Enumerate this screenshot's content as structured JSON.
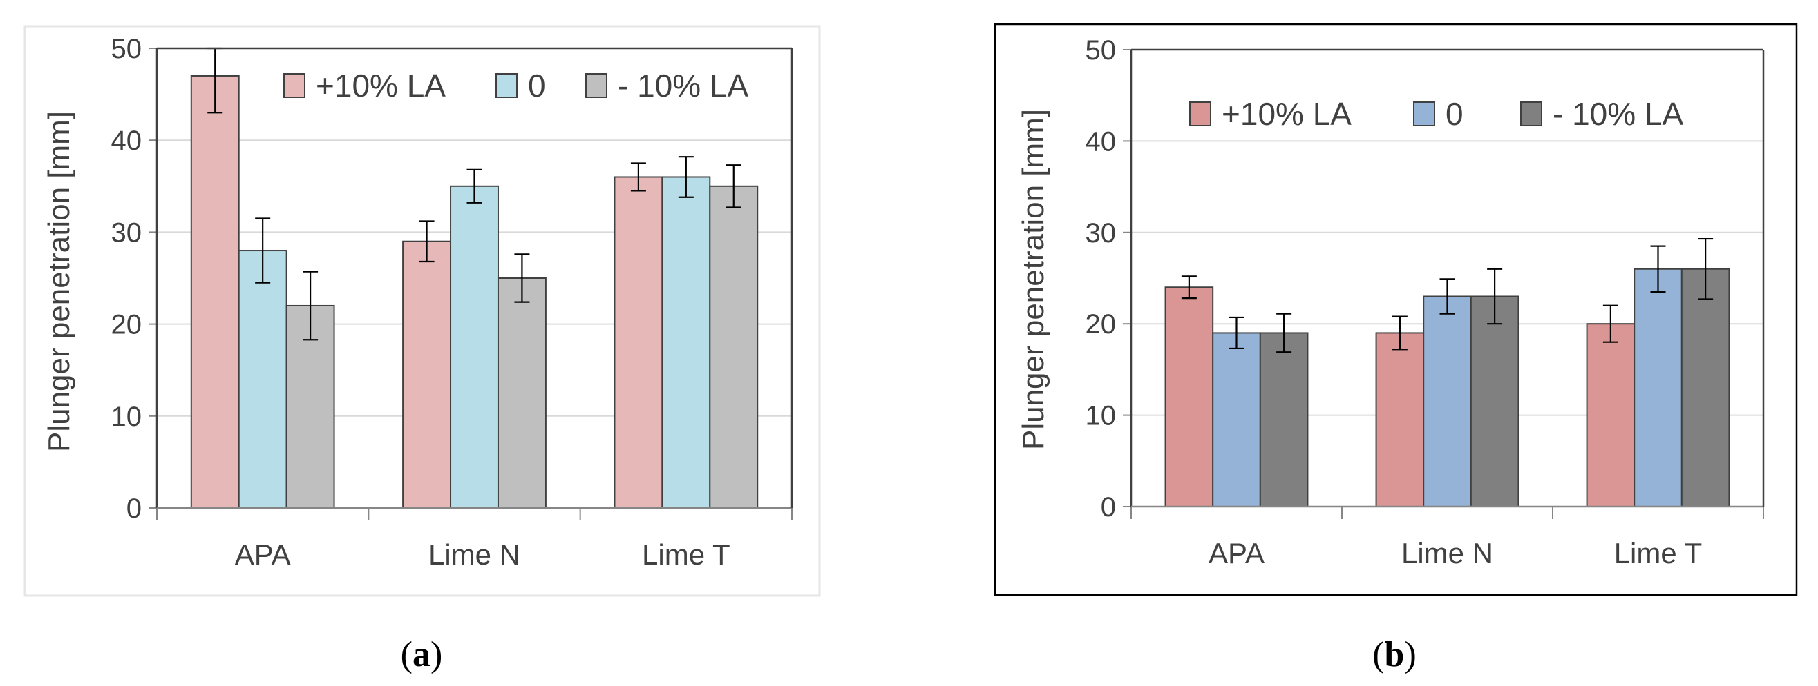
{
  "figure": {
    "captions": [
      {
        "open": "(",
        "letter": "a",
        "close": ")"
      },
      {
        "open": "(",
        "letter": "b",
        "close": ")"
      }
    ]
  },
  "chart_data": [
    {
      "type": "bar",
      "title": "",
      "xlabel": "",
      "ylabel": "Plunger penetration [mm]",
      "ylim": [
        0,
        50
      ],
      "yticks": [
        0,
        10,
        20,
        30,
        40,
        50
      ],
      "grid": true,
      "legend_position": "top-right",
      "categories": [
        "APA",
        "Lime N",
        "Lime T"
      ],
      "series": [
        {
          "name": "+10% LA",
          "color": "#e6b8b7",
          "values": [
            47,
            29,
            36
          ],
          "errors": [
            4.0,
            2.2,
            1.5
          ]
        },
        {
          "name": "0",
          "color": "#b7dee8",
          "values": [
            28,
            35,
            36
          ],
          "errors": [
            3.5,
            1.8,
            2.2
          ]
        },
        {
          "name": "- 10% LA",
          "color": "#bfbfbf",
          "values": [
            22,
            25,
            35
          ],
          "errors": [
            3.7,
            2.6,
            2.3
          ]
        }
      ]
    },
    {
      "type": "bar",
      "title": "",
      "xlabel": "",
      "ylabel": "Plunger penetration [mm]",
      "ylim": [
        0,
        50
      ],
      "yticks": [
        0,
        10,
        20,
        30,
        40,
        50
      ],
      "grid": true,
      "legend_position": "top",
      "categories": [
        "APA",
        "Lime N",
        "Lime T"
      ],
      "series": [
        {
          "name": "+10% LA",
          "color": "#da9694",
          "values": [
            24,
            19,
            20
          ],
          "errors": [
            1.2,
            1.8,
            2.0
          ]
        },
        {
          "name": "0",
          "color": "#95b3d7",
          "values": [
            19,
            23,
            26
          ],
          "errors": [
            1.7,
            1.9,
            2.5
          ]
        },
        {
          "name": "- 10% LA",
          "color": "#808080",
          "values": [
            19,
            23,
            26
          ],
          "errors": [
            2.1,
            3.0,
            3.3
          ]
        }
      ]
    }
  ]
}
